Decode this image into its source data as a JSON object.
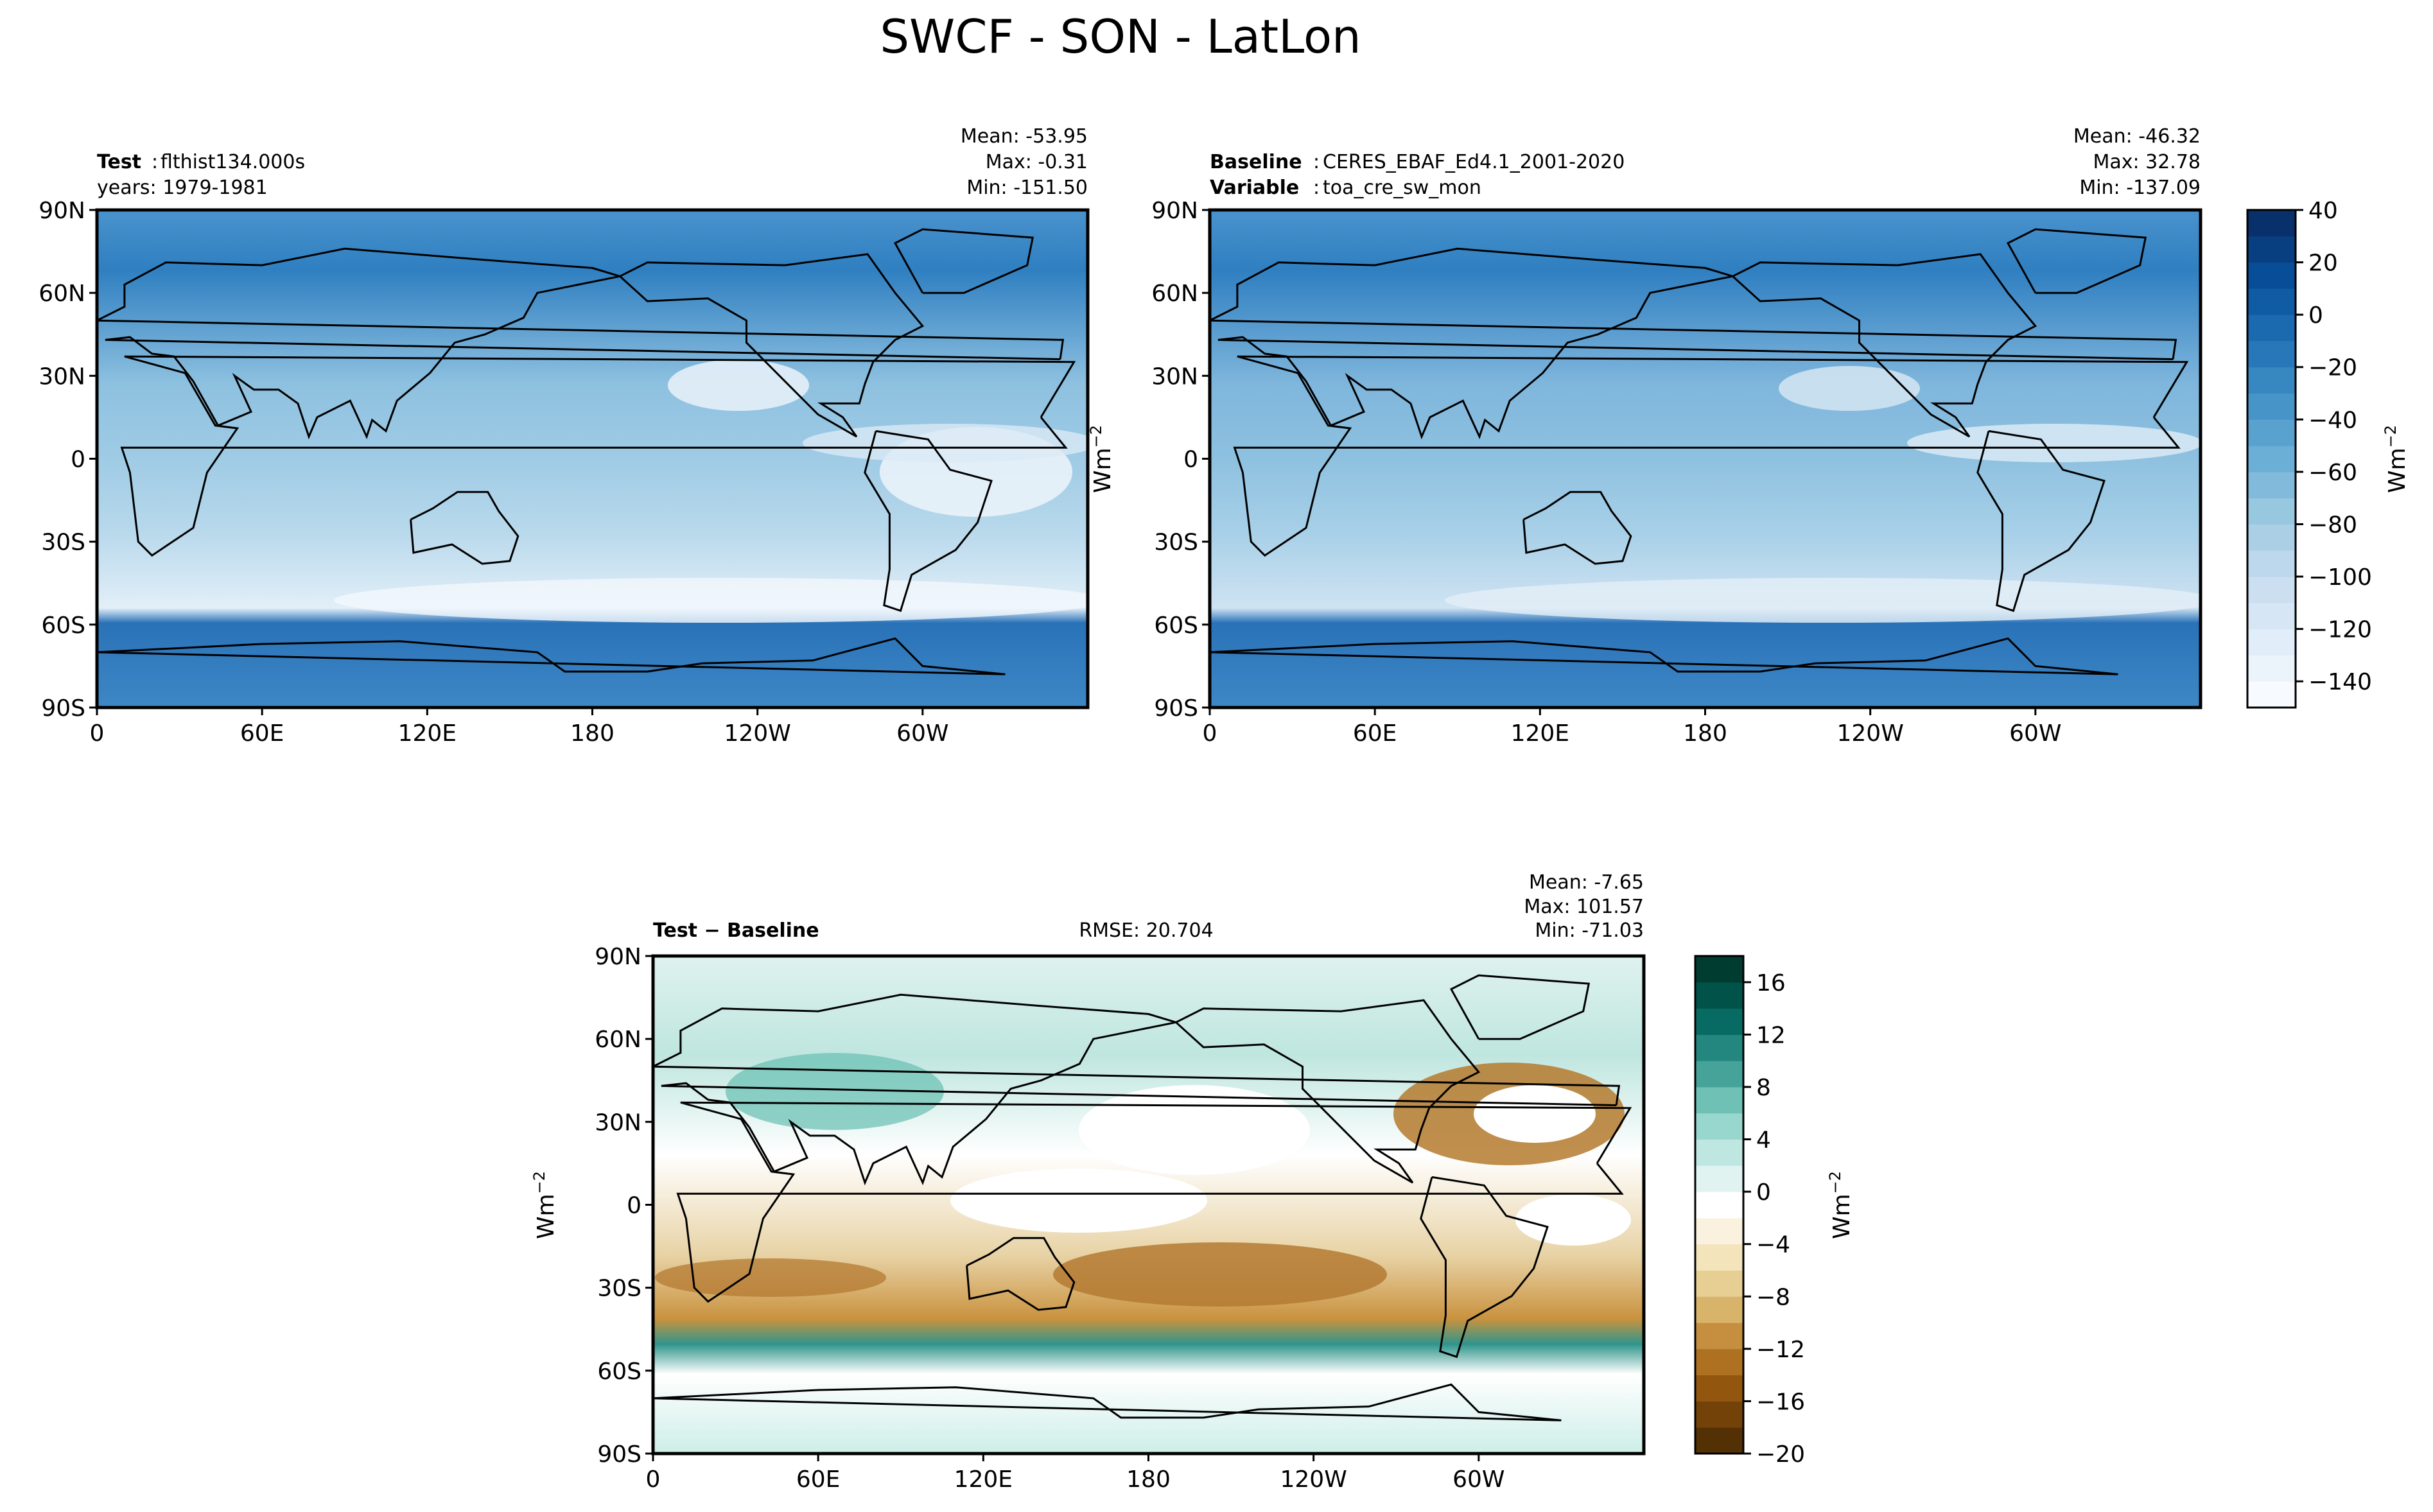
{
  "title": "SWCF - SON - LatLon",
  "units_label": "Wm",
  "units_exp": "−2",
  "lat_ticks": [
    "90N",
    "60N",
    "30N",
    "0",
    "30S",
    "60S",
    "90S"
  ],
  "lon_ticks": [
    "0",
    "60E",
    "120E",
    "180",
    "120W",
    "60W"
  ],
  "chart_data": [
    {
      "type": "heatmap",
      "panel": "test",
      "name_label": "Test",
      "name_value": "flthist134.000s",
      "sub_label": "",
      "sub_value": "years: 1979-1981",
      "stats": [
        "Mean: -53.95",
        "Max: -0.31",
        "Min: -151.50"
      ],
      "x": "longitude (0 to 360)",
      "y": "latitude (-90 to 90)",
      "colormap": "Blues_r",
      "clim": [
        -150,
        40
      ]
    },
    {
      "type": "heatmap",
      "panel": "baseline",
      "name_label": "Baseline",
      "name_value": "CERES_EBAF_Ed4.1_2001-2020",
      "sub_label": "Variable",
      "sub_value": "toa_cre_sw_mon",
      "stats": [
        "Mean: -46.32",
        "Max: 32.78",
        "Min: -137.09"
      ],
      "x": "longitude (0 to 360)",
      "y": "latitude (-90 to 90)",
      "colormap": "Blues_r",
      "clim": [
        -150,
        40
      ],
      "colorbar_ticks": [
        "40",
        "20",
        "0",
        "−20",
        "−40",
        "−60",
        "−80",
        "−100",
        "−120",
        "−140"
      ]
    },
    {
      "type": "heatmap",
      "panel": "difference",
      "name_label": "Test − Baseline",
      "rmse": "RMSE: 20.704",
      "stats": [
        "Mean: -7.65",
        "Max: 101.57",
        "Min: -71.03"
      ],
      "x": "longitude (0 to 360)",
      "y": "latitude (-90 to 90)",
      "colormap": "BrBG",
      "clim": [
        -20,
        18
      ],
      "colorbar_ticks": [
        "16",
        "12",
        "8",
        "4",
        "0",
        "−4",
        "−8",
        "−12",
        "−16",
        "−20"
      ]
    }
  ],
  "colors": {
    "blues": [
      "#f7fbff",
      "#deebf7",
      "#c6dbef",
      "#9ecae1",
      "#6baed6",
      "#4292c6",
      "#2171b5",
      "#08519c",
      "#08306b"
    ],
    "diverging": [
      "#543005",
      "#8c510a",
      "#bf812d",
      "#dfc27d",
      "#f6e8c3",
      "#ffffff",
      "#c7eae5",
      "#80cdc1",
      "#35978f",
      "#01665e",
      "#003c30"
    ]
  }
}
